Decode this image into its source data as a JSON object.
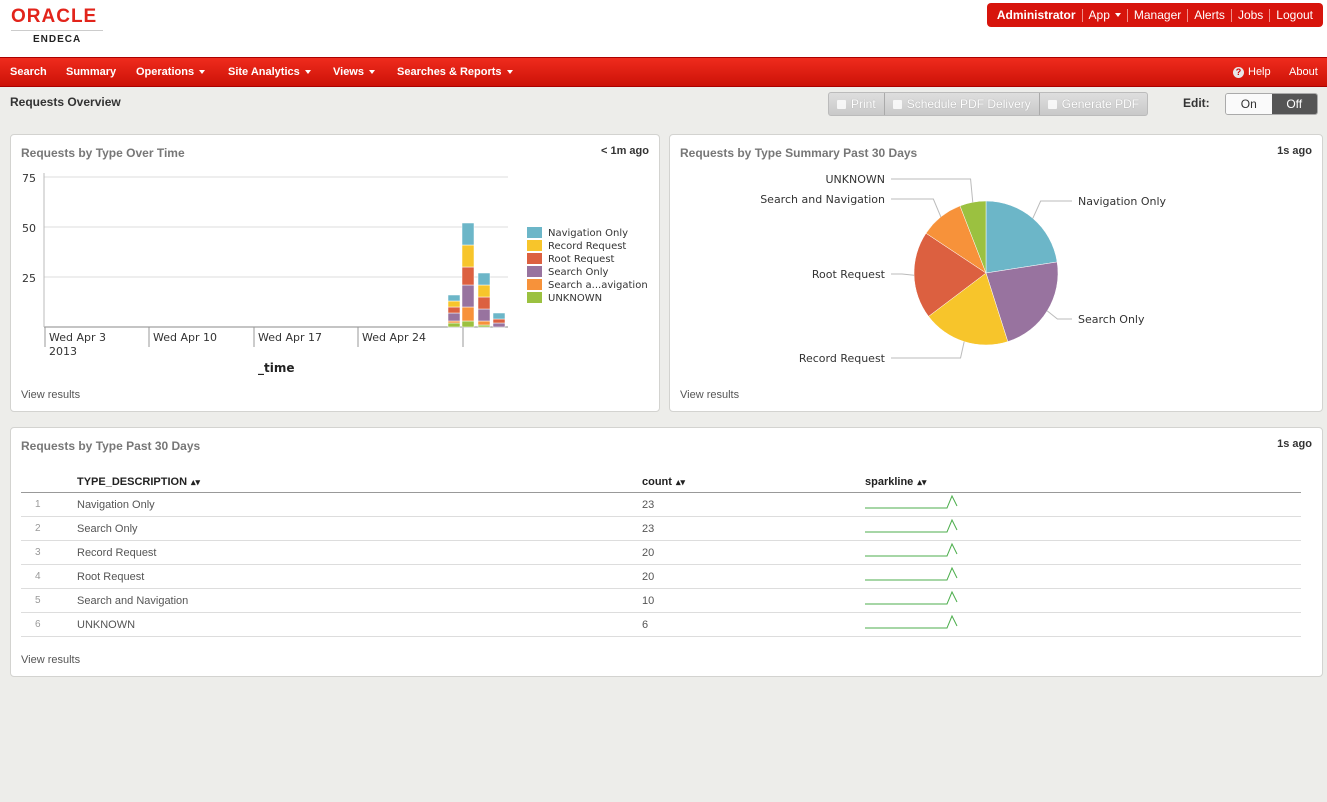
{
  "header": {
    "logo_top": "ORACLE",
    "logo_sub": "ENDECA",
    "user_nav": [
      "Administrator",
      "App",
      "Manager",
      "Alerts",
      "Jobs",
      "Logout"
    ]
  },
  "menu": {
    "items": [
      "Search",
      "Summary",
      "Operations",
      "Site Analytics",
      "Views",
      "Searches & Reports"
    ],
    "help": "Help",
    "about": "About"
  },
  "page": {
    "title": "Requests Overview",
    "print": "Print",
    "schedule": "Schedule PDF Delivery",
    "generate": "Generate PDF",
    "edit_label": "Edit:",
    "toggle_on": "On",
    "toggle_off": "Off"
  },
  "colors": {
    "accent": "#d7140c",
    "nav_only": "#6cb6c8",
    "record": "#f7c52b",
    "root": "#dc6040",
    "search_only": "#98739f",
    "search_nav": "#f7923a",
    "unknown": "#9bc140",
    "sparkline": "#4cae4c"
  },
  "panel1": {
    "title": "Requests by Type Over Time",
    "age": "< 1m ago",
    "link": "View results"
  },
  "panel2": {
    "title": "Requests by Type Summary Past 30 Days",
    "age": "1s ago",
    "link": "View results"
  },
  "panel3": {
    "title": "Requests by Type Past 30 Days",
    "age": "1s ago",
    "link": "View results"
  },
  "chart_data": [
    {
      "type": "bar",
      "stacked": true,
      "xlabel": "_time",
      "ylim": [
        0,
        75
      ],
      "yticks": [
        25,
        50,
        75
      ],
      "xticks": [
        {
          "label": "Wed Apr 3",
          "sub": "2013"
        },
        {
          "label": "Wed Apr 10",
          "sub": ""
        },
        {
          "label": "Wed Apr 17",
          "sub": ""
        },
        {
          "label": "Wed Apr 24",
          "sub": ""
        }
      ],
      "grid": true,
      "legend": "right",
      "series": [
        {
          "name": "Navigation Only",
          "color": "#6cb6c8",
          "values": [
            3,
            11,
            6,
            3
          ]
        },
        {
          "name": "Record Request",
          "color": "#f7c52b",
          "values": [
            3,
            11,
            6,
            0
          ]
        },
        {
          "name": "Root Request",
          "color": "#dc6040",
          "values": [
            3,
            9,
            6,
            2
          ]
        },
        {
          "name": "Search Only",
          "color": "#98739f",
          "values": [
            4,
            11,
            6,
            2
          ]
        },
        {
          "name": "Search a...avigation",
          "color": "#f7923a",
          "values": [
            1,
            7,
            2,
            0
          ]
        },
        {
          "name": "UNKNOWN",
          "color": "#9bc140",
          "values": [
            2,
            3,
            1,
            0
          ]
        }
      ]
    },
    {
      "type": "pie",
      "slices": [
        {
          "label": "Navigation Only",
          "value": 23,
          "color": "#6cb6c8"
        },
        {
          "label": "Search Only",
          "value": 23,
          "color": "#98739f"
        },
        {
          "label": "Record Request",
          "value": 20,
          "color": "#f7c52b"
        },
        {
          "label": "Root Request",
          "value": 20,
          "color": "#dc6040"
        },
        {
          "label": "Search and Navigation",
          "value": 10,
          "color": "#f7923a"
        },
        {
          "label": "UNKNOWN",
          "value": 6,
          "color": "#9bc140"
        }
      ]
    },
    {
      "type": "table",
      "columns": [
        "TYPE_DESCRIPTION",
        "count",
        "sparkline"
      ],
      "rows": [
        {
          "index": "1",
          "type": "Navigation Only",
          "count": "23"
        },
        {
          "index": "2",
          "type": "Search Only",
          "count": "23"
        },
        {
          "index": "3",
          "type": "Record Request",
          "count": "20"
        },
        {
          "index": "4",
          "type": "Root Request",
          "count": "20"
        },
        {
          "index": "5",
          "type": "Search and Navigation",
          "count": "10"
        },
        {
          "index": "6",
          "type": "UNKNOWN",
          "count": "6"
        }
      ]
    }
  ]
}
